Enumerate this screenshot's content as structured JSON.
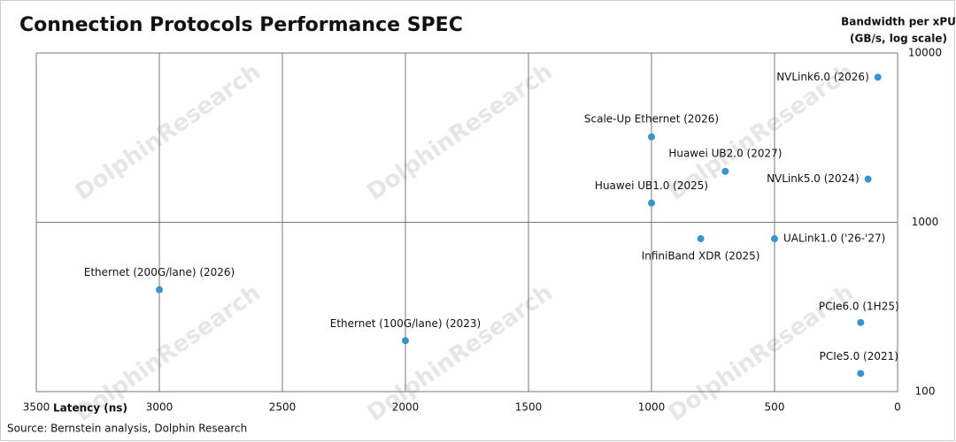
{
  "chart_data": {
    "type": "scatter",
    "title": "Connection Protocols Performance SPEC",
    "x_label": "Latency (ns)",
    "y_label": [
      "Bandwidth per xPU",
      "(GB/s, log scale)"
    ],
    "source": "Source: Bernstein analysis, Dolphin Research",
    "watermark": "DolphinResearch",
    "xlim": [
      3500,
      0
    ],
    "xticks": [
      3500,
      3000,
      2500,
      2000,
      1500,
      1000,
      500,
      0
    ],
    "ylim": [
      100,
      10000
    ],
    "yticks": [
      100,
      1000,
      10000
    ],
    "y_log": true,
    "grid": true,
    "series": [
      {
        "name": "Protocols",
        "color": "#3a94cc",
        "point_labels": [
          "NVLink6.0 (2026)",
          "Scale-Up Ethernet (2026)",
          "Huawei UB2.0 (2027)",
          "NVLink5.0 (2024)",
          "Huawei UB1.0 (2025)",
          "InfiniBand XDR (2025)",
          "UALink1.0 ('26-'27)",
          "Ethernet (200G/lane) (2026)",
          "Ethernet (100G/lane) (2023)",
          "PCIe6.0 (1H25)",
          "PCIe5.0 (2021)"
        ],
        "x": [
          80,
          1000,
          700,
          120,
          1000,
          800,
          500,
          3000,
          2000,
          150,
          150
        ],
        "values": [
          7200,
          3200,
          2000,
          1800,
          1300,
          800,
          800,
          400,
          200,
          256,
          128
        ]
      }
    ]
  }
}
